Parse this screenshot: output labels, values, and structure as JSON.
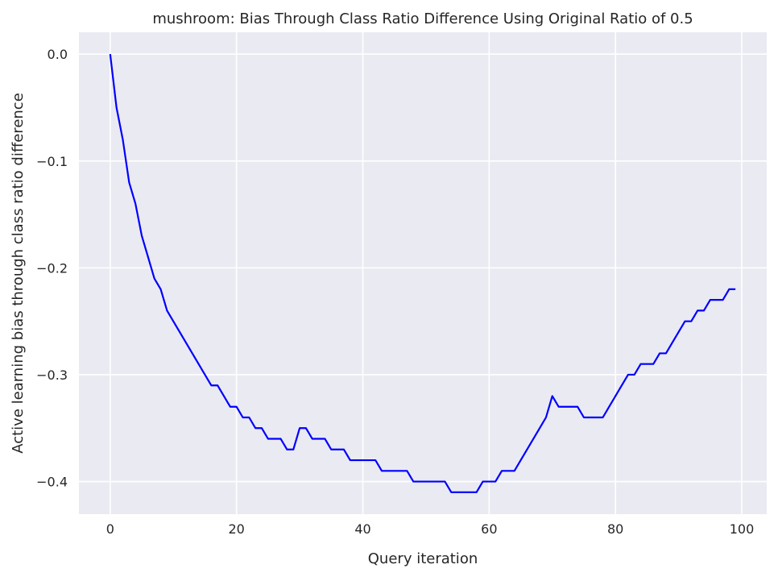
{
  "chart_data": {
    "type": "line",
    "title": "mushroom: Bias Through Class Ratio Difference Using Original Ratio of 0.5",
    "xlabel": "Query iteration",
    "ylabel": "Active learning bias through class ratio difference",
    "xlim": [
      -4.95,
      103.95
    ],
    "ylim": [
      -0.4305,
      0.0205
    ],
    "xticks": [
      0,
      20,
      40,
      60,
      80,
      100
    ],
    "yticks": [
      0.0,
      -0.1,
      -0.2,
      -0.3,
      -0.4
    ],
    "xtick_labels": [
      "0",
      "20",
      "40",
      "60",
      "80",
      "100"
    ],
    "ytick_labels": [
      "0.0",
      "−0.1",
      "−0.2",
      "−0.3",
      "−0.4"
    ],
    "grid": true,
    "background": "#eaeaf2",
    "grid_color": "#ffffff",
    "series": [
      {
        "color": "#0000ff",
        "x": [
          0,
          1,
          2,
          3,
          4,
          5,
          6,
          7,
          8,
          9,
          10,
          11,
          12,
          13,
          14,
          15,
          16,
          17,
          18,
          19,
          20,
          21,
          22,
          23,
          24,
          25,
          26,
          27,
          28,
          29,
          30,
          31,
          32,
          33,
          34,
          35,
          36,
          37,
          38,
          39,
          40,
          41,
          42,
          43,
          44,
          45,
          46,
          47,
          48,
          49,
          50,
          51,
          52,
          53,
          54,
          55,
          56,
          57,
          58,
          59,
          60,
          61,
          62,
          63,
          64,
          65,
          66,
          67,
          68,
          69,
          70,
          71,
          72,
          73,
          74,
          75,
          76,
          77,
          78,
          79,
          80,
          81,
          82,
          83,
          84,
          85,
          86,
          87,
          88,
          89,
          90,
          91,
          92,
          93,
          94,
          95,
          96,
          97,
          98,
          99
        ],
        "y": [
          0.0,
          -0.05,
          -0.08,
          -0.12,
          -0.14,
          -0.17,
          -0.19,
          -0.21,
          -0.22,
          -0.24,
          -0.25,
          -0.26,
          -0.27,
          -0.28,
          -0.29,
          -0.3,
          -0.31,
          -0.31,
          -0.32,
          -0.33,
          -0.33,
          -0.34,
          -0.34,
          -0.35,
          -0.35,
          -0.36,
          -0.36,
          -0.36,
          -0.37,
          -0.37,
          -0.35,
          -0.35,
          -0.36,
          -0.36,
          -0.36,
          -0.37,
          -0.37,
          -0.37,
          -0.38,
          -0.38,
          -0.38,
          -0.38,
          -0.38,
          -0.39,
          -0.39,
          -0.39,
          -0.39,
          -0.39,
          -0.4,
          -0.4,
          -0.4,
          -0.4,
          -0.4,
          -0.4,
          -0.41,
          -0.41,
          -0.41,
          -0.41,
          -0.41,
          -0.4,
          -0.4,
          -0.4,
          -0.39,
          -0.39,
          -0.39,
          -0.38,
          -0.37,
          -0.36,
          -0.35,
          -0.34,
          -0.32,
          -0.33,
          -0.33,
          -0.33,
          -0.33,
          -0.34,
          -0.34,
          -0.34,
          -0.34,
          -0.33,
          -0.32,
          -0.31,
          -0.3,
          -0.3,
          -0.29,
          -0.29,
          -0.29,
          -0.28,
          -0.28,
          -0.27,
          -0.26,
          -0.25,
          -0.25,
          -0.24,
          -0.24,
          -0.23,
          -0.23,
          -0.23,
          -0.22,
          -0.22
        ]
      }
    ]
  }
}
